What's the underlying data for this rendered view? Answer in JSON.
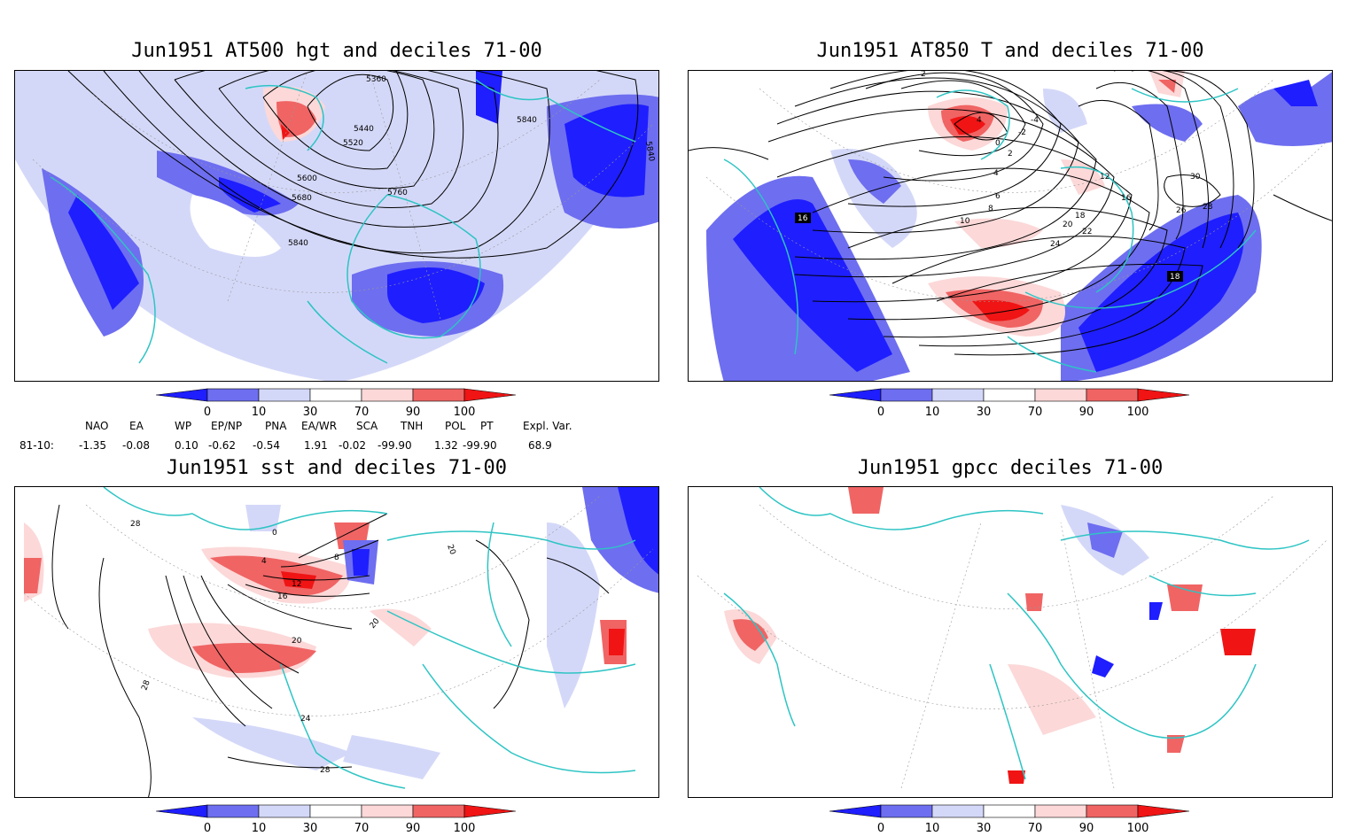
{
  "panels": [
    {
      "id": "p1",
      "title": "Jun1951 AT500 hgt and deciles 71-00",
      "contour_labels": [
        "5360",
        "5440",
        "5520",
        "5600",
        "5680",
        "5760",
        "5840",
        "5840",
        "5840"
      ]
    },
    {
      "id": "p2",
      "title": "Jun1951 AT850 T and deciles 71-00",
      "contour_labels": [
        "2",
        "4",
        "-4",
        "-2",
        "0",
        "2",
        "4",
        "6",
        "8",
        "10",
        "12",
        "16",
        "18",
        "20",
        "22",
        "24",
        "26",
        "28",
        "30",
        "16",
        "18"
      ]
    },
    {
      "id": "p3",
      "title": "Jun1951 sst and deciles 71-00",
      "contour_labels": [
        "28",
        "28",
        "0",
        "4",
        "8",
        "12",
        "16",
        "20",
        "24",
        "28",
        "20",
        "20"
      ]
    },
    {
      "id": "p4",
      "title": "Jun1951 gpcc deciles 71-00",
      "contour_labels": []
    }
  ],
  "colorbar": {
    "ticks": [
      "0",
      "10",
      "30",
      "70",
      "90",
      "100"
    ],
    "colors": [
      "#1e1eff",
      "#6e6ef0",
      "#d4d8f8",
      "#ffffff",
      "#fcd8d8",
      "#f06464",
      "#f01414"
    ]
  },
  "indices": {
    "headers": [
      "NAO",
      "EA",
      "WP",
      "EP/NP",
      "PNA",
      "EA/WR",
      "SCA",
      "TNH",
      "POL",
      "PT",
      "Expl. Var."
    ],
    "row_label": "81-10:",
    "values": [
      "-1.35",
      "-0.08",
      "0.10",
      "-0.62",
      "-0.54",
      "1.91",
      "-0.02",
      "-99.90",
      "1.32",
      "-99.90",
      "68.9"
    ]
  },
  "colors": {
    "coast": "#2ec4c4",
    "contour": "#000000",
    "grid": "#999999"
  }
}
